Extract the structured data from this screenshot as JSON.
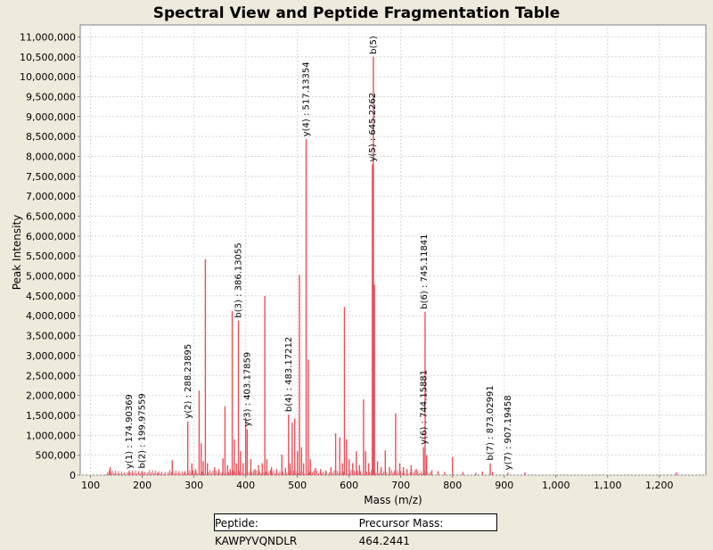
{
  "chart_data": {
    "type": "bar",
    "title": "Spectral View and Peptide Fragmentation Table",
    "xlabel": "Mass (m/z)",
    "ylabel": "Peak Intensity",
    "xlim": [
      80,
      1290
    ],
    "ylim": [
      0,
      11300000
    ],
    "x_ticks": [
      100,
      200,
      300,
      400,
      500,
      600,
      700,
      800,
      900,
      1000,
      1100,
      1200
    ],
    "x_tick_labels": [
      "100",
      "200",
      "300",
      "400",
      "500",
      "600",
      "700",
      "800",
      "900",
      "1,000",
      "1,100",
      "1,200"
    ],
    "y_ticks": [
      0,
      500000,
      1000000,
      1500000,
      2000000,
      2500000,
      3000000,
      3500000,
      4000000,
      4500000,
      5000000,
      5500000,
      6000000,
      6500000,
      7000000,
      7500000,
      8000000,
      8500000,
      9000000,
      9500000,
      10000000,
      10500000,
      11000000
    ],
    "y_tick_labels": [
      "0",
      "500,000",
      "1,000,000",
      "1,500,000",
      "2,000,000",
      "2,500,000",
      "3,000,000",
      "3,500,000",
      "4,000,000",
      "4,500,000",
      "5,000,000",
      "5,500,000",
      "6,000,000",
      "6,500,000",
      "7,000,000",
      "7,500,000",
      "8,000,000",
      "8,500,000",
      "9,000,000",
      "9,500,000",
      "10,000,000",
      "10,500,000",
      "11,000,000"
    ],
    "grid": true,
    "bar_color": "#e8505a",
    "peaks": [
      {
        "x": 138,
        "y": 200000
      },
      {
        "x": 175,
        "y": 90000
      },
      {
        "x": 200,
        "y": 100000
      },
      {
        "x": 230,
        "y": 60000
      },
      {
        "x": 258,
        "y": 370000
      },
      {
        "x": 282,
        "y": 100000
      },
      {
        "x": 288,
        "y": 1350000
      },
      {
        "x": 296,
        "y": 300000
      },
      {
        "x": 303,
        "y": 150000
      },
      {
        "x": 310,
        "y": 2120000
      },
      {
        "x": 314,
        "y": 800000
      },
      {
        "x": 318,
        "y": 350000
      },
      {
        "x": 322,
        "y": 5420000
      },
      {
        "x": 326,
        "y": 300000
      },
      {
        "x": 340,
        "y": 200000
      },
      {
        "x": 348,
        "y": 150000
      },
      {
        "x": 356,
        "y": 420000
      },
      {
        "x": 360,
        "y": 1730000
      },
      {
        "x": 365,
        "y": 250000
      },
      {
        "x": 370,
        "y": 150000
      },
      {
        "x": 374,
        "y": 4120000
      },
      {
        "x": 378,
        "y": 900000
      },
      {
        "x": 382,
        "y": 300000
      },
      {
        "x": 386,
        "y": 3880000
      },
      {
        "x": 390,
        "y": 600000
      },
      {
        "x": 395,
        "y": 300000
      },
      {
        "x": 400,
        "y": 1450000
      },
      {
        "x": 403,
        "y": 1150000
      },
      {
        "x": 410,
        "y": 400000
      },
      {
        "x": 418,
        "y": 150000
      },
      {
        "x": 425,
        "y": 250000
      },
      {
        "x": 432,
        "y": 300000
      },
      {
        "x": 437,
        "y": 4500000
      },
      {
        "x": 441,
        "y": 400000
      },
      {
        "x": 450,
        "y": 200000
      },
      {
        "x": 460,
        "y": 150000
      },
      {
        "x": 470,
        "y": 520000
      },
      {
        "x": 477,
        "y": 180000
      },
      {
        "x": 483,
        "y": 1520000
      },
      {
        "x": 486,
        "y": 300000
      },
      {
        "x": 490,
        "y": 1320000
      },
      {
        "x": 495,
        "y": 1420000
      },
      {
        "x": 500,
        "y": 600000
      },
      {
        "x": 504,
        "y": 5020000
      },
      {
        "x": 508,
        "y": 700000
      },
      {
        "x": 512,
        "y": 300000
      },
      {
        "x": 517,
        "y": 8430000
      },
      {
        "x": 521,
        "y": 2900000
      },
      {
        "x": 525,
        "y": 400000
      },
      {
        "x": 535,
        "y": 180000
      },
      {
        "x": 545,
        "y": 150000
      },
      {
        "x": 555,
        "y": 120000
      },
      {
        "x": 565,
        "y": 200000
      },
      {
        "x": 574,
        "y": 1050000
      },
      {
        "x": 582,
        "y": 950000
      },
      {
        "x": 587,
        "y": 300000
      },
      {
        "x": 591,
        "y": 4220000
      },
      {
        "x": 595,
        "y": 900000
      },
      {
        "x": 600,
        "y": 400000
      },
      {
        "x": 607,
        "y": 300000
      },
      {
        "x": 614,
        "y": 600000
      },
      {
        "x": 620,
        "y": 250000
      },
      {
        "x": 628,
        "y": 1900000
      },
      {
        "x": 632,
        "y": 600000
      },
      {
        "x": 638,
        "y": 300000
      },
      {
        "x": 645,
        "y": 7800000
      },
      {
        "x": 647,
        "y": 10500000
      },
      {
        "x": 649,
        "y": 4780000
      },
      {
        "x": 655,
        "y": 350000
      },
      {
        "x": 662,
        "y": 200000
      },
      {
        "x": 670,
        "y": 620000
      },
      {
        "x": 678,
        "y": 200000
      },
      {
        "x": 690,
        "y": 1550000
      },
      {
        "x": 698,
        "y": 300000
      },
      {
        "x": 705,
        "y": 200000
      },
      {
        "x": 712,
        "y": 150000
      },
      {
        "x": 720,
        "y": 250000
      },
      {
        "x": 730,
        "y": 150000
      },
      {
        "x": 744,
        "y": 700000
      },
      {
        "x": 747,
        "y": 4100000
      },
      {
        "x": 750,
        "y": 500000
      },
      {
        "x": 760,
        "y": 120000
      },
      {
        "x": 772,
        "y": 100000
      },
      {
        "x": 785,
        "y": 80000
      },
      {
        "x": 800,
        "y": 450000
      },
      {
        "x": 820,
        "y": 80000
      },
      {
        "x": 845,
        "y": 60000
      },
      {
        "x": 858,
        "y": 90000
      },
      {
        "x": 873,
        "y": 300000
      },
      {
        "x": 877,
        "y": 80000
      },
      {
        "x": 907,
        "y": 60000
      },
      {
        "x": 940,
        "y": 70000
      },
      {
        "x": 1233,
        "y": 70000
      }
    ],
    "annotations": [
      {
        "x": 174.90369,
        "y": 90000,
        "label": "y(1) : 174.90369"
      },
      {
        "x": 199.97559,
        "y": 100000,
        "label": "b(2) : 199.97559"
      },
      {
        "x": 288.23895,
        "y": 1350000,
        "label": "y(2) : 288.23895"
      },
      {
        "x": 386.13055,
        "y": 3880000,
        "label": "b(3) : 386.13055"
      },
      {
        "x": 403.17859,
        "y": 1150000,
        "label": "y(3) : 403.17859"
      },
      {
        "x": 483.17212,
        "y": 1520000,
        "label": "b(4) : 483.17212"
      },
      {
        "x": 517.13354,
        "y": 8430000,
        "label": "y(4) : 517.13354"
      },
      {
        "x": 645.2262,
        "y": 7800000,
        "label": "y(5) : 645.2262"
      },
      {
        "x": 647,
        "y": 10500000,
        "label": "b(5)"
      },
      {
        "x": 744.15881,
        "y": 700000,
        "label": "y(6) : 744.15881"
      },
      {
        "x": 745.11841,
        "y": 4100000,
        "label": "b(6) : 745.11841"
      },
      {
        "x": 873.02991,
        "y": 300000,
        "label": "b(7) : 873.02991"
      },
      {
        "x": 907.19458,
        "y": 60000,
        "label": "y(7) : 907.19458"
      }
    ]
  },
  "legend": {
    "peptide": "Peptide: KAWPYVQNDLR",
    "precursor": "Precursor Mass: 464.2441"
  }
}
